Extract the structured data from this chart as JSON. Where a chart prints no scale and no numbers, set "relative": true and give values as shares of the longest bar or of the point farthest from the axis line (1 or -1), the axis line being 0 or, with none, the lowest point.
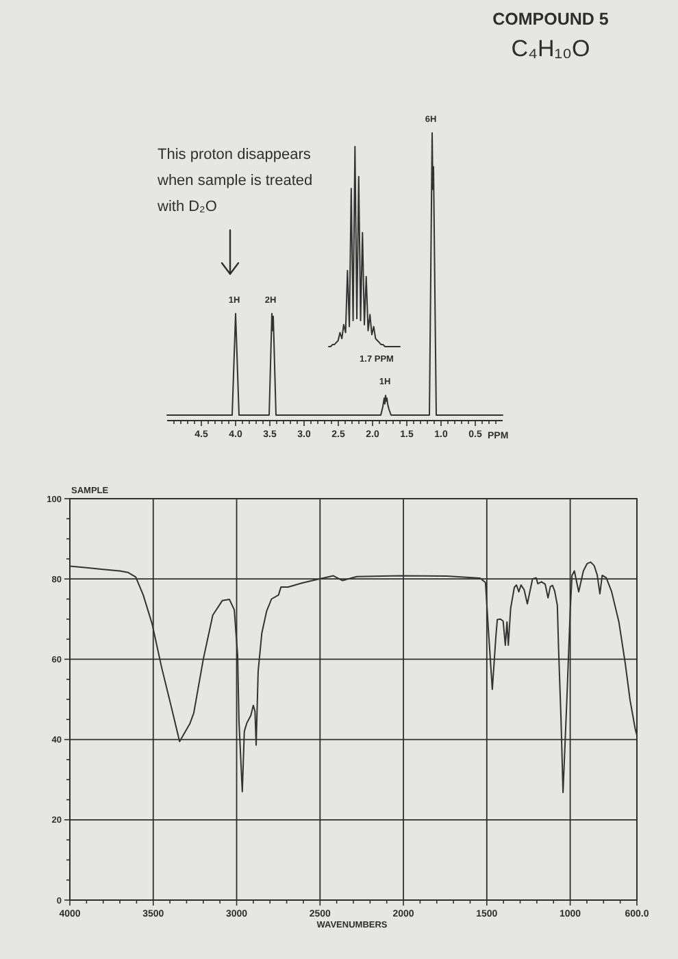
{
  "chart_data": [
    {
      "type": "line",
      "title": "COMPOUND 5",
      "subtitle": "C₄H₁₀O",
      "relative": true,
      "xlim": [
        5.0,
        0.1
      ],
      "xlabel": "PPM",
      "xticks": [
        {
          "value": 4.9,
          "label": null
        },
        {
          "value": 4.8,
          "label": null
        },
        {
          "value": 4.7,
          "label": null
        },
        {
          "value": 4.6,
          "label": null
        },
        4.5,
        {
          "value": 4.4,
          "label": null
        },
        {
          "value": 4.3,
          "label": null
        },
        {
          "value": 4.2,
          "label": null
        },
        {
          "value": 4.1,
          "label": null
        },
        {
          "value": 4,
          "label": "4.0"
        },
        {
          "value": 3.9,
          "label": null
        },
        {
          "value": 3.8,
          "label": null
        },
        {
          "value": 3.7,
          "label": null
        },
        {
          "value": 3.6,
          "label": null
        },
        3.5,
        {
          "value": 3.4,
          "label": null
        },
        {
          "value": 3.3,
          "label": null
        },
        {
          "value": 3.2,
          "label": null
        },
        {
          "value": 3.1,
          "label": null
        },
        {
          "value": 3,
          "label": "3.0"
        },
        {
          "value": 2.9,
          "label": null
        },
        {
          "value": 2.8,
          "label": null
        },
        {
          "value": 2.7,
          "label": null
        },
        {
          "value": 2.6,
          "label": null
        },
        2.5,
        {
          "value": 2.4,
          "label": null
        },
        {
          "value": 2.3,
          "label": null
        },
        {
          "value": 2.2,
          "label": null
        },
        {
          "value": 2.1,
          "label": null
        },
        {
          "value": 2,
          "label": "2.0"
        },
        {
          "value": 1.9,
          "label": null
        },
        {
          "value": 1.8,
          "label": null
        },
        {
          "value": 1.7,
          "label": null
        },
        {
          "value": 1.6,
          "label": null
        },
        1.5,
        {
          "value": 1.4,
          "label": null
        },
        {
          "value": 1.3,
          "label": null
        },
        {
          "value": 1.2,
          "label": null
        },
        {
          "value": 1.1,
          "label": null
        },
        {
          "value": 1,
          "label": "1.0"
        },
        {
          "value": 0.9,
          "label": null
        },
        {
          "value": 0.8,
          "label": null
        },
        {
          "value": 0.7,
          "label": null
        },
        {
          "value": 0.6,
          "label": null
        },
        0.5,
        {
          "value": 0.4,
          "label": null
        },
        {
          "value": 0.3,
          "label": null
        },
        {
          "value": 0.2,
          "label": null
        }
      ],
      "annotations": [
        {
          "text": "1H",
          "x": 4.0,
          "y": 0.36
        },
        {
          "text": "2H",
          "x": 3.47,
          "y": 0.36
        },
        {
          "text": "1H",
          "x": 1.8,
          "y": 0.07
        },
        {
          "text": "6H",
          "x": 1.13,
          "y": 1
        },
        "This proton disappears\nwhen sample is treated\nwith D₂O"
      ],
      "series": [
        {
          "color": "#333333",
          "x": [
            5.0,
            4.05,
            4.0,
            3.95,
            3.51,
            3.47,
            3.46,
            3.45,
            3.41,
            1.88,
            1.85,
            1.83,
            1.82,
            1.81,
            1.8,
            1.79,
            1.78,
            1.76,
            1.73,
            1.17,
            1.13,
            1.12,
            1.11,
            1.07,
            0.1
          ],
          "values": [
            0,
            0,
            0.36,
            0,
            0,
            0.36,
            0.3,
            0.35,
            0,
            0,
            0.03,
            0.06,
            0.04,
            0.07,
            0.05,
            0.06,
            0.04,
            0.02,
            0,
            0,
            1,
            0.8,
            0.88,
            0,
            0
          ]
        }
      ]
    },
    {
      "type": "line",
      "relative": true,
      "xlabel": "1.7 PPM",
      "categories": [
        null,
        null,
        null,
        null,
        null,
        null,
        null,
        null,
        null,
        null,
        null,
        null,
        null,
        null,
        null,
        null,
        null,
        null,
        null,
        null,
        null,
        null,
        null,
        null,
        null,
        null,
        null,
        null,
        null,
        null,
        null,
        null,
        null,
        null,
        null,
        null,
        null,
        null,
        null
      ],
      "series": [
        {
          "color": "#333333",
          "values": [
            0,
            0,
            0.01,
            0.01,
            0.02,
            0.03,
            0.07,
            0.04,
            0.11,
            0.07,
            0.38,
            0.1,
            0.79,
            0.13,
            1,
            0.14,
            0.85,
            0.13,
            0.57,
            0.11,
            0.35,
            0.08,
            0.16,
            0.06,
            0.1,
            0.04,
            0.03,
            0.02,
            0.01,
            0.01,
            0,
            0,
            0,
            0,
            0,
            0,
            0,
            0,
            0
          ]
        }
      ]
    },
    {
      "type": "line",
      "title": "SAMPLE",
      "xlabel": "WAVENUMBERS",
      "xlim": [
        4000,
        600
      ],
      "ylim": [
        0,
        100
      ],
      "grid": true,
      "xticks": [
        4000,
        {
          "value": 3900,
          "label": null
        },
        {
          "value": 3800,
          "label": null
        },
        {
          "value": 3700,
          "label": null
        },
        {
          "value": 3600,
          "label": null
        },
        3500,
        {
          "value": 3400,
          "label": null
        },
        {
          "value": 3300,
          "label": null
        },
        {
          "value": 3200,
          "label": null
        },
        {
          "value": 3100,
          "label": null
        },
        3000,
        {
          "value": 2900,
          "label": null
        },
        {
          "value": 2800,
          "label": null
        },
        {
          "value": 2700,
          "label": null
        },
        {
          "value": 2600,
          "label": null
        },
        2500,
        {
          "value": 2400,
          "label": null
        },
        {
          "value": 2300,
          "label": null
        },
        {
          "value": 2200,
          "label": null
        },
        {
          "value": 2100,
          "label": null
        },
        2000,
        {
          "value": 1900,
          "label": null
        },
        {
          "value": 1800,
          "label": null
        },
        {
          "value": 1700,
          "label": null
        },
        {
          "value": 1600,
          "label": null
        },
        1500,
        {
          "value": 1400,
          "label": null
        },
        {
          "value": 1300,
          "label": null
        },
        {
          "value": 1200,
          "label": null
        },
        {
          "value": 1100,
          "label": null
        },
        1000,
        {
          "value": 900,
          "label": null
        },
        {
          "value": 800,
          "label": null
        },
        {
          "value": 700,
          "label": null
        },
        {
          "value": 600,
          "label": "600.0"
        }
      ],
      "yticks": [
        0,
        {
          "value": 5,
          "label": null
        },
        {
          "value": 10,
          "label": null
        },
        {
          "value": 15,
          "label": null
        },
        20,
        {
          "value": 25,
          "label": null
        },
        {
          "value": 30,
          "label": null
        },
        {
          "value": 35,
          "label": null
        },
        40,
        {
          "value": 45,
          "label": null
        },
        {
          "value": 50,
          "label": null
        },
        {
          "value": 55,
          "label": null
        },
        60,
        {
          "value": 65,
          "label": null
        },
        {
          "value": 70,
          "label": null
        },
        {
          "value": 75,
          "label": null
        },
        80,
        {
          "value": 85,
          "label": null
        },
        {
          "value": 90,
          "label": null
        },
        {
          "value": 95,
          "label": null
        },
        100
      ],
      "series": [
        {
          "color": "#333333",
          "x": [
            4000,
            3900,
            3800,
            3700,
            3650,
            3605,
            3560,
            3506,
            3450,
            3395,
            3342,
            3280,
            3257,
            3200,
            3143,
            3086,
            3043,
            3014,
            2994,
            2986,
            2966,
            2954,
            2940,
            2915,
            2900,
            2890,
            2883,
            2871,
            2849,
            2820,
            2791,
            2749,
            2734,
            2691,
            2606,
            2506,
            2420,
            2365,
            2280,
            2020,
            1740,
            1540,
            1508,
            1490,
            1467,
            1445,
            1437,
            1418,
            1402,
            1389,
            1379,
            1371,
            1357,
            1335,
            1322,
            1308,
            1295,
            1276,
            1257,
            1226,
            1204,
            1194,
            1172,
            1150,
            1133,
            1119,
            1106,
            1093,
            1077,
            1070,
            1055,
            1043,
            1020,
            1000,
            989,
            975,
            949,
            921,
            899,
            877,
            856,
            838,
            822,
            808,
            784,
            752,
            708,
            670,
            641,
            611,
            600
          ],
          "values": [
            83.2,
            82.8,
            82.4,
            82,
            81.6,
            80.5,
            76,
            68.7,
            58,
            48.7,
            39.5,
            44,
            46.6,
            60,
            71,
            74.6,
            74.9,
            72.3,
            61,
            44.6,
            27,
            42,
            44,
            46,
            48.5,
            47,
            38.6,
            57,
            66.5,
            72,
            75,
            76,
            78,
            78,
            79,
            80,
            80.8,
            79.6,
            80.6,
            80.8,
            80.7,
            80.2,
            79.1,
            67,
            52.5,
            66,
            69.9,
            70,
            69.5,
            63.5,
            69.3,
            63.5,
            72.7,
            77.9,
            78.5,
            76.8,
            78.5,
            77.3,
            73.8,
            80,
            80.3,
            78.8,
            79.3,
            78.7,
            75.3,
            78.1,
            78.4,
            77,
            73.4,
            63,
            45,
            26.8,
            50,
            72,
            80.9,
            82,
            76.8,
            82,
            83.8,
            84.2,
            83.3,
            81,
            76.3,
            80.9,
            80.3,
            76.9,
            69.3,
            59,
            49.8,
            42.8,
            41
          ]
        }
      ]
    }
  ]
}
